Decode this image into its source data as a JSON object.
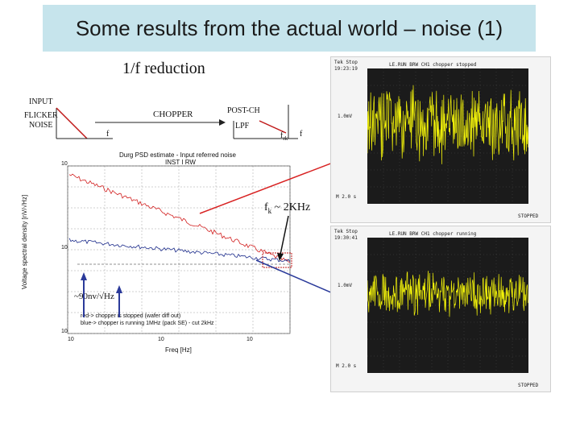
{
  "slide": {
    "title": "Some results from the actual world – noise (1)",
    "subtitle": "1/f reduction"
  },
  "block_diagram": {
    "input_label": "INPUT",
    "flicker_label_1": "FLICKER",
    "flicker_label_2": "NOISE",
    "chopper_label": "CHOPPER",
    "post_label": "POST-CH",
    "lpf_label": "LPF",
    "f_label_1": "f",
    "fk_label": "f",
    "fk_sub": "rk",
    "f_label_2": "f"
  },
  "psd_plot": {
    "title_line1": "Durg PSD estimate - Input referred noise",
    "title_line2": "INST I RW",
    "ylabel": "Voltage spectral density [nV/√Hz]",
    "xlabel": "Freq [Hz]",
    "xticks": [
      "10",
      "10",
      "10"
    ],
    "yticks": [
      "10",
      "10",
      "10"
    ],
    "legend_line1": "red-> chopper is stopped (wafer diff out)",
    "legend_line2": "blue-> chopper is running 1MHz (pack SE) - cut 2kHz",
    "annotation": "~90nv/√Hz",
    "red_color": "#d22020",
    "blue_color": "#1a2a8a"
  },
  "fk_annotation": {
    "text": "f",
    "sub": "k",
    "rest": " ~ 2KHz"
  },
  "scope_top": {
    "header": "LE.RUN BRW CH1 chopper stopped",
    "time": "19:23:19",
    "tektronix": "Tek Stop",
    "ch_info": "1.0mV",
    "readout": "M 2.0 s",
    "status": "STOPPED",
    "trace_color": "#f2f20a"
  },
  "scope_bottom": {
    "header": "LE.RUN BRW CH1 chopper running",
    "time": "19:30:41",
    "tektronix": "Tek Stop",
    "ch_info": "1.0mV",
    "readout": "M 2.0 s",
    "status": "STOPPED",
    "trace_color": "#f2f20a"
  }
}
